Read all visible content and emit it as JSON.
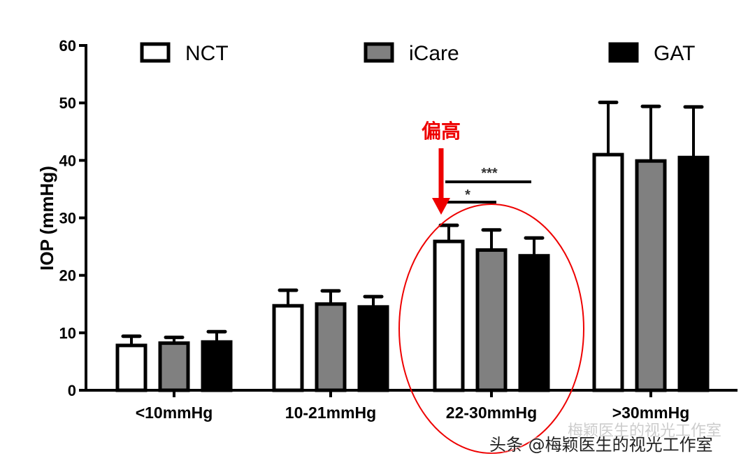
{
  "chart_data": {
    "type": "bar",
    "ylabel": "IOP (mmHg)",
    "ylim": [
      0,
      60
    ],
    "yticks": [
      0,
      10,
      20,
      30,
      40,
      50,
      60
    ],
    "categories": [
      "<10mmHg",
      "10-21mmHg",
      "22-30mmHg",
      ">30mmHg"
    ],
    "legend_position": "top",
    "series": [
      {
        "name": "NCT",
        "color": "#ffffff",
        "values": [
          7.8,
          14.7,
          25.9,
          41.0
        ],
        "error": [
          1.6,
          2.7,
          2.8,
          9.1
        ]
      },
      {
        "name": "iCare",
        "color": "#808080",
        "values": [
          8.2,
          15.0,
          24.4,
          39.9
        ],
        "error": [
          1.0,
          2.3,
          3.5,
          9.5
        ]
      },
      {
        "name": "GAT",
        "color": "#000000",
        "values": [
          8.4,
          14.5,
          23.4,
          40.5
        ],
        "error": [
          1.8,
          1.8,
          3.1,
          8.8
        ]
      }
    ],
    "significance": [
      {
        "label": "***",
        "category": "22-30mmHg",
        "from": "NCT",
        "to": "GAT"
      },
      {
        "label": "*",
        "category": "22-30mmHg",
        "from": "NCT",
        "to": "iCare"
      }
    ],
    "annotation": {
      "text": "偏高",
      "color": "#ee0000",
      "target": "22-30mmHg NCT"
    }
  },
  "watermark": {
    "text": "头条 @梅颖医生的视光工作室",
    "faint_text": "梅颖医生的视光工作室"
  }
}
